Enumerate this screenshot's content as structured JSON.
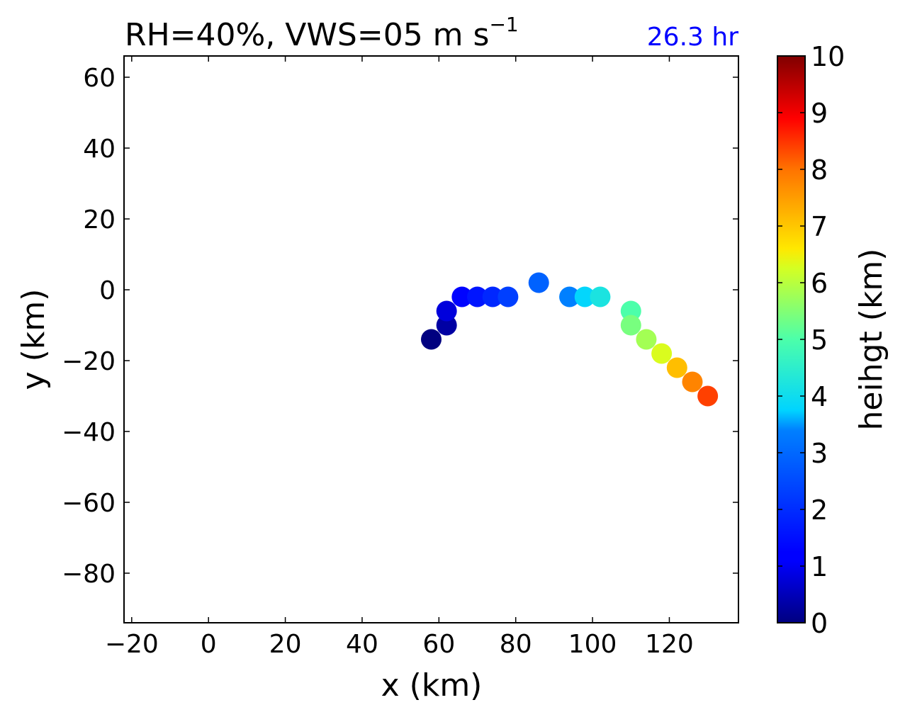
{
  "chart_data": {
    "type": "scatter",
    "title": "RH=40%, VWS=05 m s",
    "title_superscript": "−1",
    "time_label": "26.3 hr",
    "time_label_color": "#0000ff",
    "xlabel": "x (km)",
    "ylabel": "y (km)",
    "xlim": [
      -22,
      138
    ],
    "ylim": [
      -94,
      66
    ],
    "xticks": [
      -20,
      0,
      20,
      40,
      60,
      80,
      100,
      120
    ],
    "yticks": [
      -80,
      -60,
      -40,
      -20,
      0,
      20,
      40,
      60
    ],
    "colorbar": {
      "label": "heihgt (km)",
      "range": [
        0,
        10
      ],
      "ticks": [
        0,
        1,
        2,
        3,
        4,
        5,
        6,
        7,
        8,
        9,
        10
      ],
      "colormap": "jet"
    },
    "points": [
      {
        "x": 58,
        "y": -14,
        "height": 0.0
      },
      {
        "x": 62,
        "y": -10,
        "height": 0.3
      },
      {
        "x": 62,
        "y": -6,
        "height": 0.8
      },
      {
        "x": 66,
        "y": -2,
        "height": 1.3
      },
      {
        "x": 70,
        "y": -2,
        "height": 1.6
      },
      {
        "x": 74,
        "y": -2,
        "height": 1.9
      },
      {
        "x": 78,
        "y": -2,
        "height": 2.3
      },
      {
        "x": 86,
        "y": 2,
        "height": 2.9
      },
      {
        "x": 94,
        "y": -2,
        "height": 3.4
      },
      {
        "x": 98,
        "y": -2,
        "height": 3.8
      },
      {
        "x": 102,
        "y": -2,
        "height": 4.2
      },
      {
        "x": 110,
        "y": -6,
        "height": 5.0
      },
      {
        "x": 110,
        "y": -10,
        "height": 5.4
      },
      {
        "x": 114,
        "y": -14,
        "height": 5.8
      },
      {
        "x": 118,
        "y": -18,
        "height": 6.3
      },
      {
        "x": 122,
        "y": -22,
        "height": 7.1
      },
      {
        "x": 126,
        "y": -26,
        "height": 7.8
      },
      {
        "x": 130,
        "y": -30,
        "height": 8.4
      }
    ]
  }
}
